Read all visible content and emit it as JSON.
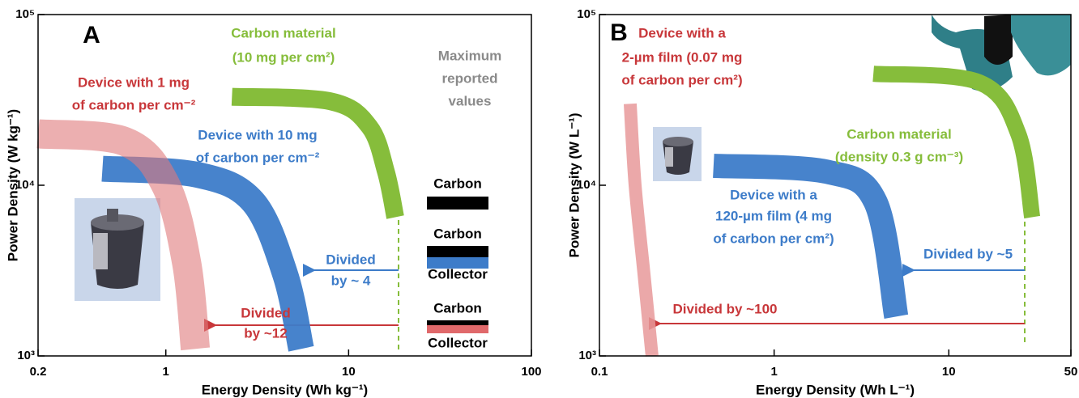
{
  "chart_data": [
    {
      "type": "line",
      "title": "A",
      "xlabel": "Energy Density (Wh kg⁻¹)",
      "ylabel": "Power Density (W kg⁻¹)",
      "log_x": true,
      "log_y": true,
      "xlim": [
        0.2,
        100
      ],
      "xticks": [
        0.2,
        1,
        10,
        100
      ],
      "ylim": [
        1000,
        100000
      ],
      "yticks": [
        {
          "value": 1000,
          "label": "10³"
        },
        {
          "value": 10000,
          "label": "10⁴"
        },
        {
          "value": 100000,
          "label": "10⁵"
        }
      ],
      "series": [
        {
          "label": [
            "Carbon material",
            "(10 mg per cm²)"
          ],
          "color": "#86bd3b",
          "x": [
            2.3,
            8,
            13,
            16,
            18
          ],
          "y": [
            33000,
            31000,
            22000,
            12000,
            6500
          ]
        },
        {
          "label": [
            "Device with 10 mg",
            "of carbon per cm⁻²"
          ],
          "color": "#3d7cc9",
          "x": [
            0.45,
            1.5,
            3,
            4.5,
            5.5
          ],
          "y": [
            12500,
            11500,
            8000,
            3000,
            1100
          ]
        },
        {
          "label": [
            "Device with 1 mg",
            "of carbon per cm⁻²"
          ],
          "color": "#e07a7c",
          "x": [
            0.2,
            0.6,
            1.0,
            1.3,
            1.45
          ],
          "y": [
            20000,
            18000,
            10000,
            3500,
            1100
          ]
        }
      ],
      "annotations": [
        {
          "text": "Maximum",
          "color": "#8a8a8a"
        },
        {
          "text": "reported",
          "color": "#8a8a8a"
        },
        {
          "text": "values",
          "color": "#8a8a8a"
        },
        {
          "text": "Divided",
          "color": "#3d7cc9"
        },
        {
          "text": "by ~ 4",
          "color": "#3d7cc9"
        },
        {
          "text": "Divided",
          "color": "#c8373a"
        },
        {
          "text": "by ~12",
          "color": "#c8373a"
        },
        {
          "text": "Carbon",
          "color": "#000000"
        },
        {
          "text": "Carbon",
          "color": "#000000"
        },
        {
          "text": "Collector",
          "color": "#000000"
        },
        {
          "text": "Carbon",
          "color": "#000000"
        },
        {
          "text": "Collector",
          "color": "#000000"
        }
      ]
    },
    {
      "type": "line",
      "title": "B",
      "xlabel": "Energy Density (Wh L⁻¹)",
      "ylabel": "Power Density (W L⁻¹)",
      "log_x": true,
      "log_y": true,
      "xlim": [
        0.1,
        50
      ],
      "xticks": [
        0.1,
        1,
        10,
        50
      ],
      "ylim": [
        1000,
        100000
      ],
      "yticks": [
        {
          "value": 1000,
          "label": "10³"
        },
        {
          "value": 10000,
          "label": "10⁴"
        },
        {
          "value": 100000,
          "label": "10⁵"
        }
      ],
      "series": [
        {
          "label": [
            "Device with a",
            "2-µm film (0.07 mg",
            "of carbon per cm²)"
          ],
          "color": "#e8999a",
          "x": [
            0.15,
            0.16,
            0.18,
            0.2
          ],
          "y": [
            30000,
            10000,
            3000,
            1000
          ]
        },
        {
          "label": [
            "Device with a",
            "120-µm film (4 mg",
            "of carbon per cm²)"
          ],
          "color": "#3d7cc9",
          "x": [
            0.45,
            2,
            3.8,
            5
          ],
          "y": [
            13000,
            12000,
            8000,
            1700
          ]
        },
        {
          "label": [
            "Carbon material",
            "(density 0.3 g cm⁻³)"
          ],
          "color": "#86bd3b",
          "x": [
            3.7,
            15,
            25,
            30
          ],
          "y": [
            45000,
            40000,
            20000,
            6500
          ]
        }
      ],
      "annotations": [
        {
          "text": "Divided by ~5",
          "color": "#3d7cc9"
        },
        {
          "text": "Divided by ~100",
          "color": "#c8373a"
        }
      ]
    }
  ]
}
